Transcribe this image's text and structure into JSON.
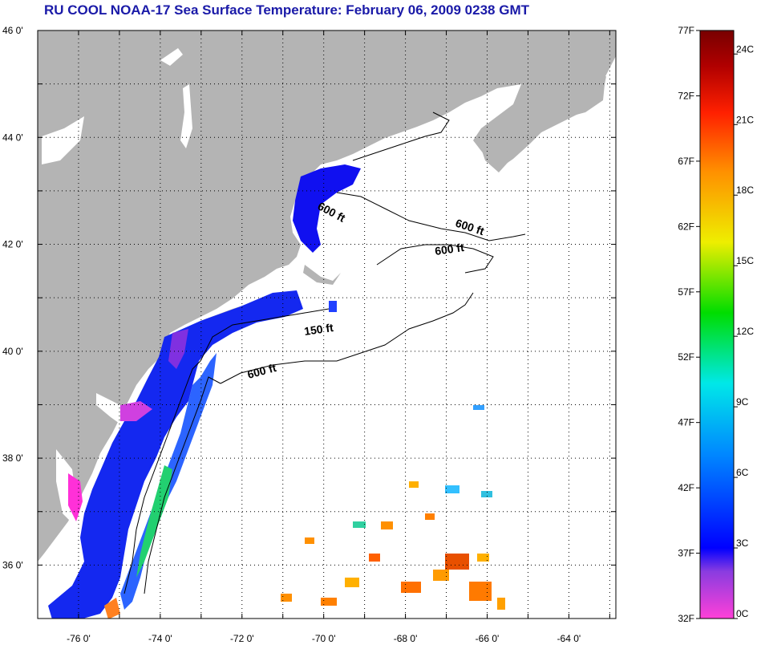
{
  "title": "RU COOL  NOAA-17  Sea Surface Temperature:  February 06, 2009 0238 GMT",
  "map": {
    "lat_labels": [
      "46 0'",
      "44 0'",
      "42 0'",
      "40 0'",
      "38 0'",
      "36 0'"
    ],
    "lon_labels": [
      "-76 0'",
      "-74 0'",
      "-72 0'",
      "-70 0'",
      "-68 0'",
      "-66 0'",
      "-64 0'"
    ],
    "isobath_labels": [
      "600 ft",
      "600 ft",
      "600 ft",
      "150 ft",
      "600 ft"
    ],
    "colors": {
      "land": "#b4b4b4",
      "ocean_no_data": "#ffffff",
      "grid": "#000000"
    }
  },
  "colorbar": {
    "fahrenheit_labels": [
      "77F",
      "72F",
      "67F",
      "62F",
      "57F",
      "52F",
      "47F",
      "42F",
      "37F",
      "32F"
    ],
    "celsius_labels": [
      "24C",
      "21C",
      "18C",
      "15C",
      "12C",
      "9C",
      "6C",
      "3C",
      "0C"
    ],
    "gradient_stops": [
      "#ff40d8",
      "#8a3ce0",
      "#0000ff",
      "#0088ff",
      "#00e8e8",
      "#00dd00",
      "#eeee00",
      "#ff9000",
      "#ff2000",
      "#b00000",
      "#780000"
    ]
  }
}
